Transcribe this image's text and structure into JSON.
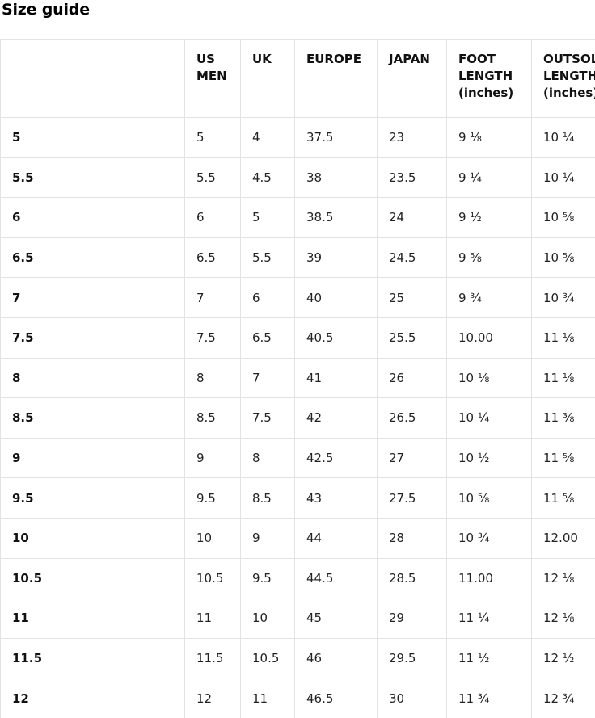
{
  "page": {
    "title": "Size guide"
  },
  "colors": {
    "border": "#e3e3e3",
    "text": "#222222",
    "heading": "#111111",
    "background": "#ffffff"
  },
  "table": {
    "columns": [
      "",
      "US MEN",
      "UK",
      "EUROPE",
      "JAPAN",
      "FOOT LENGTH (inches)",
      "OUTSOLE LENGTH (inches)"
    ],
    "rows": [
      {
        "label": "5",
        "cells": [
          "5",
          "4",
          "37.5",
          "23",
          "9 ⅛",
          "10 ¼"
        ]
      },
      {
        "label": "5.5",
        "cells": [
          "5.5",
          "4.5",
          "38",
          "23.5",
          "9 ¼",
          "10 ¼"
        ]
      },
      {
        "label": "6",
        "cells": [
          "6",
          "5",
          "38.5",
          "24",
          "9 ½",
          "10 ⅝"
        ]
      },
      {
        "label": "6.5",
        "cells": [
          "6.5",
          "5.5",
          "39",
          "24.5",
          "9 ⅝",
          "10 ⅝"
        ]
      },
      {
        "label": "7",
        "cells": [
          "7",
          "6",
          "40",
          "25",
          "9 ¾",
          "10 ¾"
        ]
      },
      {
        "label": "7.5",
        "cells": [
          "7.5",
          "6.5",
          "40.5",
          "25.5",
          "10.00",
          "11 ⅛"
        ]
      },
      {
        "label": "8",
        "cells": [
          "8",
          "7",
          "41",
          "26",
          "10 ⅛",
          "11 ⅛"
        ]
      },
      {
        "label": "8.5",
        "cells": [
          "8.5",
          "7.5",
          "42",
          "26.5",
          "10 ¼",
          "11 ⅜"
        ]
      },
      {
        "label": "9",
        "cells": [
          "9",
          "8",
          "42.5",
          "27",
          "10 ½",
          "11 ⅝"
        ]
      },
      {
        "label": "9.5",
        "cells": [
          "9.5",
          "8.5",
          "43",
          "27.5",
          "10 ⅝",
          "11 ⅝"
        ]
      },
      {
        "label": "10",
        "cells": [
          "10",
          "9",
          "44",
          "28",
          "10 ¾",
          "12.00"
        ]
      },
      {
        "label": "10.5",
        "cells": [
          "10.5",
          "9.5",
          "44.5",
          "28.5",
          "11.00",
          "12 ⅛"
        ]
      },
      {
        "label": "11",
        "cells": [
          "11",
          "10",
          "45",
          "29",
          "11 ¼",
          "12 ⅛"
        ]
      },
      {
        "label": "11.5",
        "cells": [
          "11.5",
          "10.5",
          "46",
          "29.5",
          "11 ½",
          "12 ½"
        ]
      },
      {
        "label": "12",
        "cells": [
          "12",
          "11",
          "46.5",
          "30",
          "11 ¾",
          "12 ¾"
        ]
      }
    ]
  }
}
